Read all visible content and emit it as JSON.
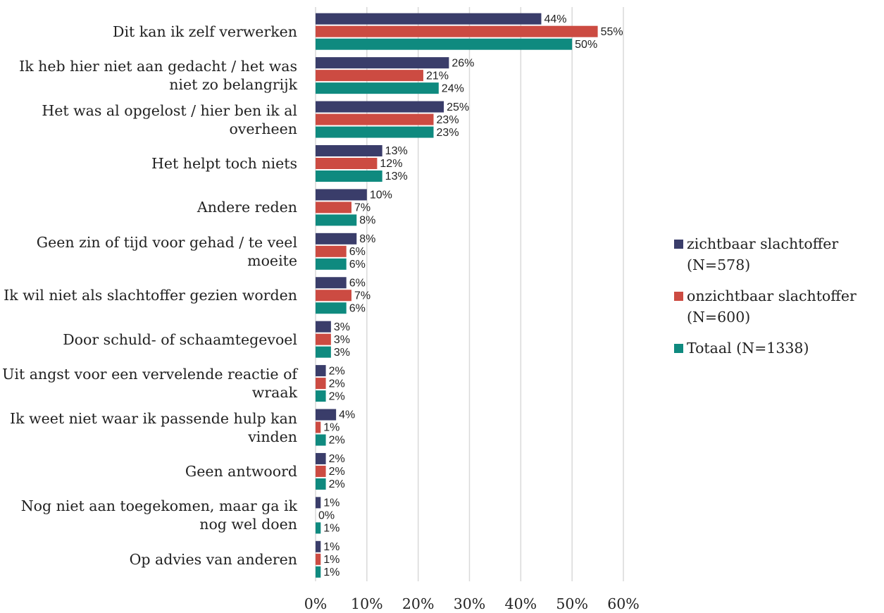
{
  "chart_data": {
    "type": "bar",
    "orientation": "horizontal",
    "categories": [
      "Dit kan ik zelf verwerken",
      "Ik heb hier niet aan gedacht / het was niet zo belangrijk",
      "Het was al opgelost / hier ben ik al overheen",
      "Het helpt toch niets",
      "Andere reden",
      "Geen zin of tijd voor gehad / te veel moeite",
      "Ik wil niet als slachtoffer gezien worden",
      "Door schuld- of schaamtegevoel",
      "Uit angst voor een vervelende reactie of wraak",
      "Ik weet niet waar ik passende hulp kan vinden",
      "Geen antwoord",
      "Nog niet aan toegekomen, maar ga ik nog wel doen",
      "Op advies van anderen"
    ],
    "series": [
      {
        "name": "zichtbaar slachtoffer (N=578)",
        "color": "#3a3d6a",
        "values": [
          44,
          26,
          25,
          13,
          10,
          8,
          6,
          3,
          2,
          4,
          2,
          1,
          1
        ],
        "value_labels": [
          "44%",
          "26%",
          "25%",
          "13%",
          "10%",
          "8%",
          "6%",
          "3%",
          "2%",
          "4%",
          "2%",
          "1%",
          "1%"
        ]
      },
      {
        "name": "onzichtbaar slachtoffer (N=600)",
        "color": "#cc4b42",
        "values": [
          55,
          21,
          23,
          12,
          7,
          6,
          7,
          3,
          2,
          1,
          2,
          0,
          1
        ],
        "value_labels": [
          "55%",
          "21%",
          "23%",
          "12%",
          "7%",
          "6%",
          "7%",
          "3%",
          "2%",
          "1%",
          "2%",
          "0%",
          "1%"
        ]
      },
      {
        "name": "Totaal (N=1338)",
        "color": "#0f8a7f",
        "values": [
          50,
          24,
          23,
          13,
          8,
          6,
          6,
          3,
          2,
          2,
          2,
          1,
          1
        ],
        "value_labels": [
          "50%",
          "24%",
          "23%",
          "13%",
          "8%",
          "6%",
          "6%",
          "3%",
          "2%",
          "2%",
          "2%",
          "1%",
          "1%"
        ]
      }
    ],
    "xlim": [
      0,
      60
    ],
    "xticks": [
      {
        "value": 0,
        "label": "0%"
      },
      {
        "value": 10,
        "label": "10%"
      },
      {
        "value": 20,
        "label": "20%"
      },
      {
        "value": 30,
        "label": "30%"
      },
      {
        "value": 40,
        "label": "40%"
      },
      {
        "value": 50,
        "label": "50%"
      },
      {
        "value": 60,
        "label": "60%"
      }
    ],
    "grid": true,
    "legend": "right"
  }
}
